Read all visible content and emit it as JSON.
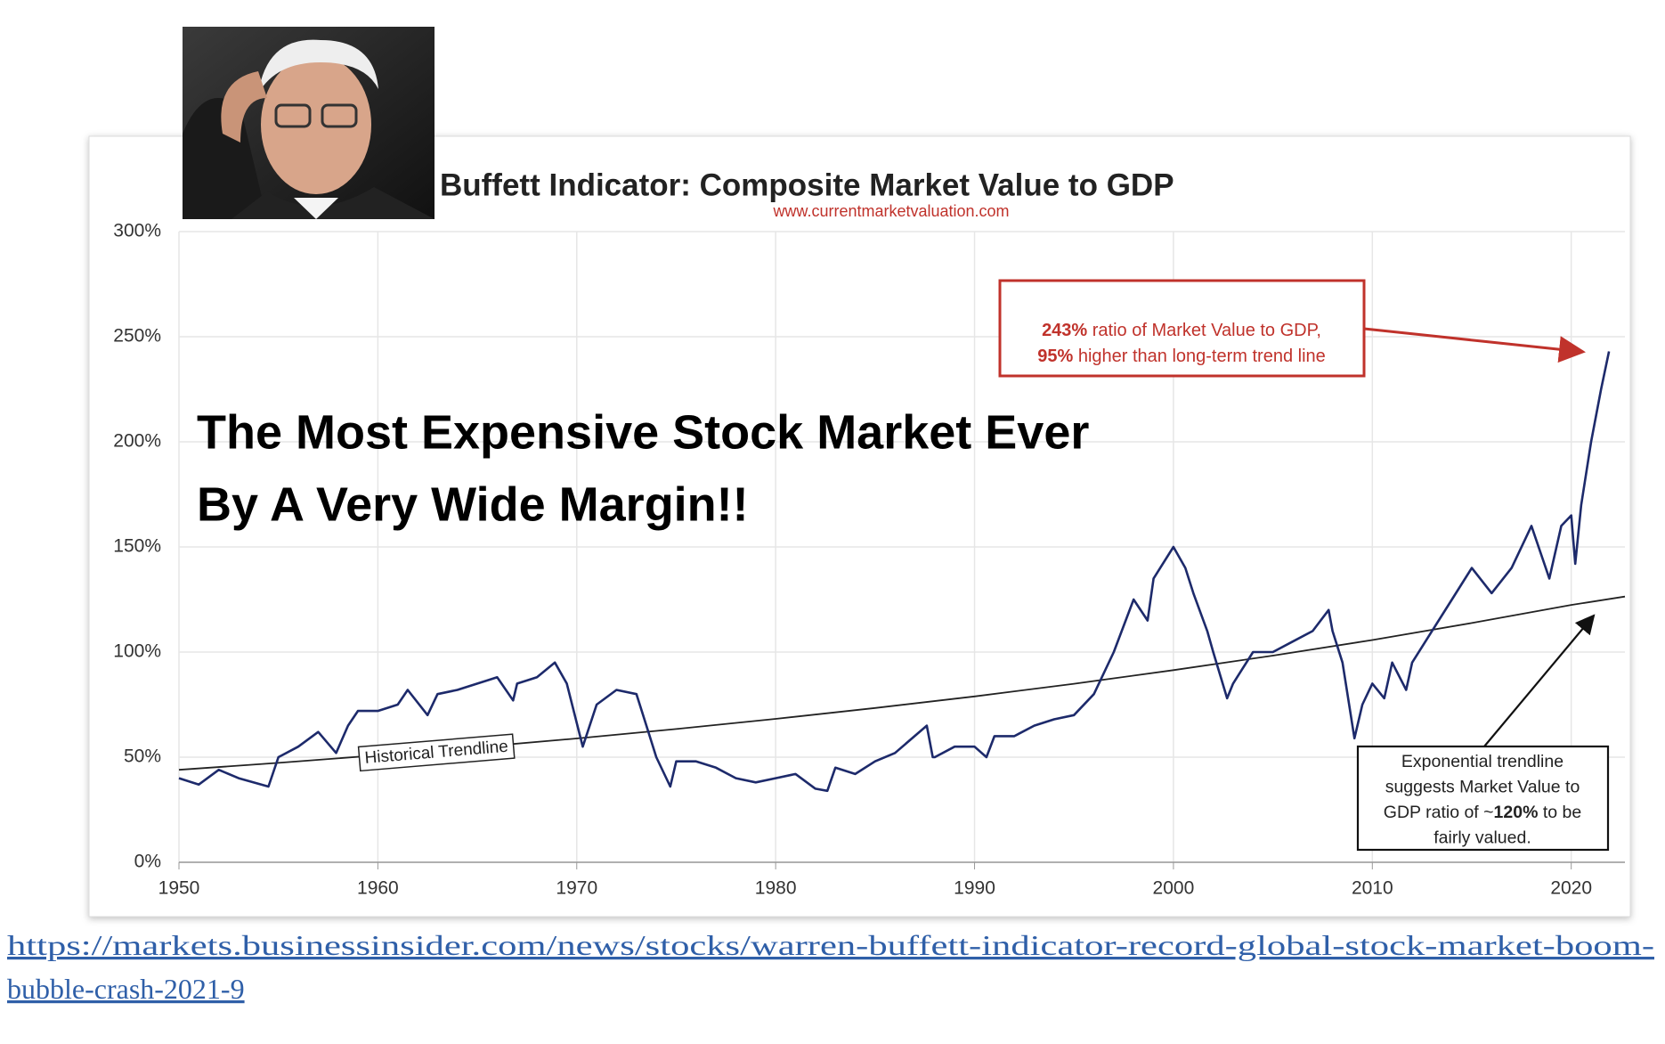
{
  "chart_data": {
    "type": "line",
    "title": "Buffett Indicator: Composite Market Value to GDP",
    "subtitle": "www.currentmarketvaluation.com",
    "headline": [
      "The Most Expensive Stock Market Ever",
      "By A Very Wide Margin!!"
    ],
    "x": [
      1950,
      1951,
      1952,
      1953,
      1954.5,
      1955,
      1956,
      1957,
      1957.9,
      1958.5,
      1959,
      1960,
      1961,
      1961.5,
      1962.5,
      1963,
      1964,
      1965,
      1966,
      1966.8,
      1967,
      1968,
      1968.9,
      1969.5,
      1970.3,
      1971,
      1972,
      1973,
      1973.5,
      1974,
      1974.7,
      1975,
      1976,
      1977,
      1978,
      1979,
      1980,
      1981,
      1982,
      1982.6,
      1983,
      1984,
      1985,
      1986,
      1987.6,
      1987.9,
      1988,
      1989,
      1990,
      1990.6,
      1991,
      1992,
      1993,
      1994,
      1995,
      1996,
      1997,
      1998,
      1998.7,
      1999,
      2000,
      2000.6,
      2001,
      2001.7,
      2002,
      2002.7,
      2003,
      2004,
      2005,
      2006,
      2007,
      2007.8,
      2008,
      2008.5,
      2009.1,
      2009.5,
      2010,
      2010.6,
      2011,
      2011.7,
      2012,
      2013,
      2014,
      2015,
      2016,
      2017,
      2018,
      2018.9,
      2019.5,
      2020,
      2020.2,
      2020.5,
      2021,
      2021.5,
      2021.9
    ],
    "series": [
      {
        "color": "#1d2a6b",
        "values": [
          40,
          37,
          44,
          40,
          36,
          50,
          55,
          62,
          52,
          65,
          72,
          72,
          75,
          82,
          70,
          80,
          82,
          85,
          88,
          77,
          85,
          88,
          95,
          85,
          55,
          75,
          82,
          80,
          65,
          50,
          36,
          48,
          48,
          45,
          40,
          38,
          40,
          42,
          35,
          34,
          45,
          42,
          48,
          52,
          65,
          50,
          50,
          55,
          55,
          50,
          60,
          60,
          65,
          68,
          70,
          80,
          100,
          125,
          115,
          135,
          150,
          140,
          128,
          110,
          100,
          78,
          85,
          100,
          100,
          105,
          110,
          120,
          110,
          95,
          59,
          75,
          85,
          78,
          95,
          82,
          95,
          110,
          125,
          140,
          128,
          140,
          160,
          135,
          160,
          165,
          142,
          170,
          200,
          225,
          243
        ]
      }
    ],
    "trendline": {
      "name": "Historical Trendline",
      "color": "#222222",
      "x": [
        1950,
        1955,
        1960,
        1965,
        1970,
        1975,
        1980,
        1985,
        1990,
        1995,
        2000,
        2005,
        2010,
        2015,
        2020,
        2022.7
      ],
      "values": [
        44,
        47.3,
        50.9,
        54.8,
        58.9,
        63.4,
        68.2,
        73.4,
        78.9,
        84.9,
        91.4,
        98.3,
        105.7,
        113.8,
        122.4,
        126.4
      ]
    },
    "xlim": [
      1950,
      2022.7
    ],
    "ylim": [
      0,
      300
    ],
    "xticks": [
      1950,
      1960,
      1970,
      1980,
      1990,
      2000,
      2010,
      2020
    ],
    "yticks": [
      {
        "value": 0,
        "label": "0%"
      },
      {
        "value": 50,
        "label": "50%"
      },
      {
        "value": 100,
        "label": "100%"
      },
      {
        "value": 150,
        "label": "150%"
      },
      {
        "value": 200,
        "label": "200%"
      },
      {
        "value": 250,
        "label": "250%"
      },
      {
        "value": 300,
        "label": "300%"
      }
    ],
    "grid": true,
    "annotations": [
      {
        "color": "#c0322b",
        "lines": [
          [
            {
              "text": "243%",
              "bold": true
            },
            {
              "text": " ratio of Market Value to GDP,",
              "bold": false
            }
          ],
          [
            {
              "text": "95%",
              "bold": true
            },
            {
              "text": " higher than long-term trend line",
              "bold": false
            }
          ]
        ]
      },
      {
        "color": "#111111",
        "lines": [
          [
            {
              "text": "Exponential trendline",
              "bold": false
            }
          ],
          [
            {
              "text": "suggests Market Value to",
              "bold": false
            }
          ],
          [
            {
              "text": "GDP ratio of ~",
              "bold": false
            },
            {
              "text": "120%",
              "bold": true
            },
            {
              "text": " to be",
              "bold": false
            }
          ],
          [
            {
              "text": "fairly valued.",
              "bold": false
            }
          ]
        ]
      }
    ]
  },
  "source_link": {
    "lines": [
      "https://markets.businessinsider.com/news/stocks/warren-buffett-indicator-record-global-stock-market-boom-",
      "bubble-crash-2021-9"
    ]
  }
}
